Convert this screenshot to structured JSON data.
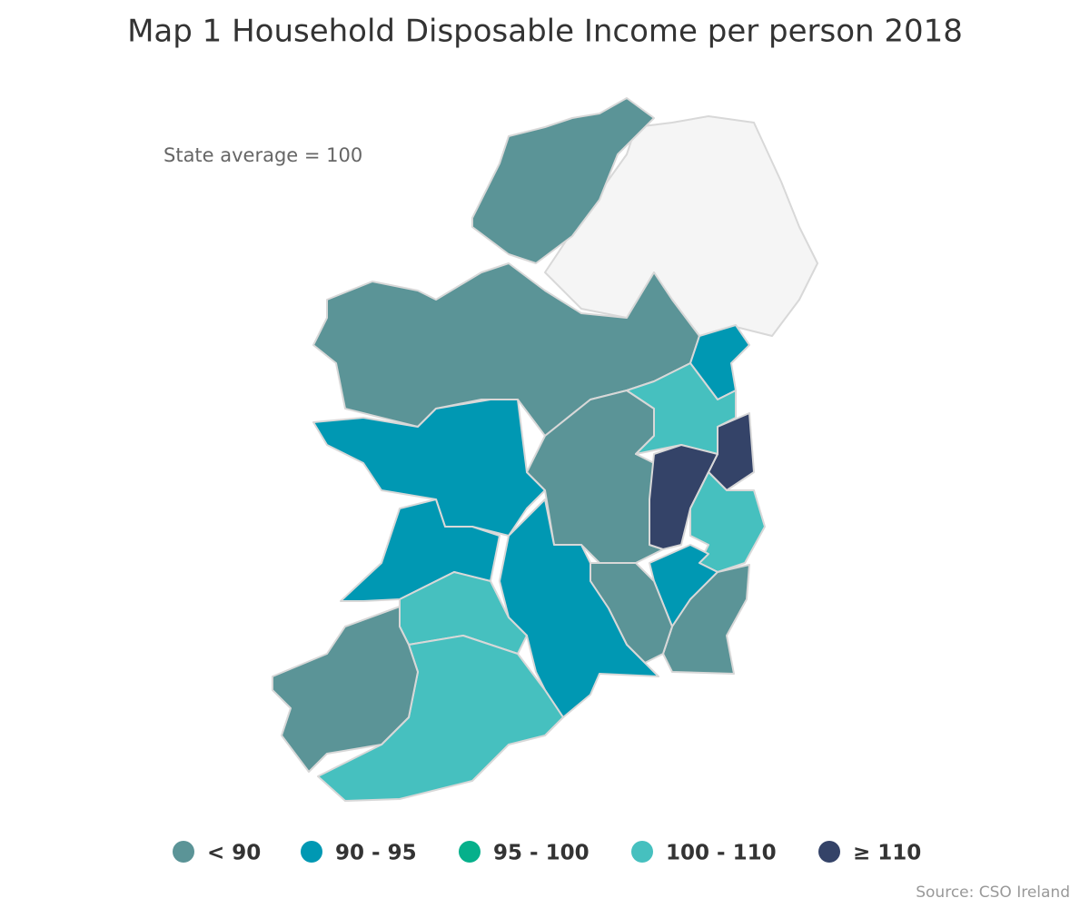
{
  "title": "Map 1 Household Disposable Income per person 2018",
  "note": "State average = 100",
  "legend": [
    {
      "label": "< 90",
      "color": "#5b9497"
    },
    {
      "label": "90 - 95",
      "color": "#0098b3"
    },
    {
      "label": "95 - 100",
      "color": "#06b08b"
    },
    {
      "label": "100 - 110",
      "color": "#46c0bf"
    },
    {
      "label": "≥ 110",
      "color": "#344368"
    }
  ],
  "source": "Source: CSO Ireland"
}
